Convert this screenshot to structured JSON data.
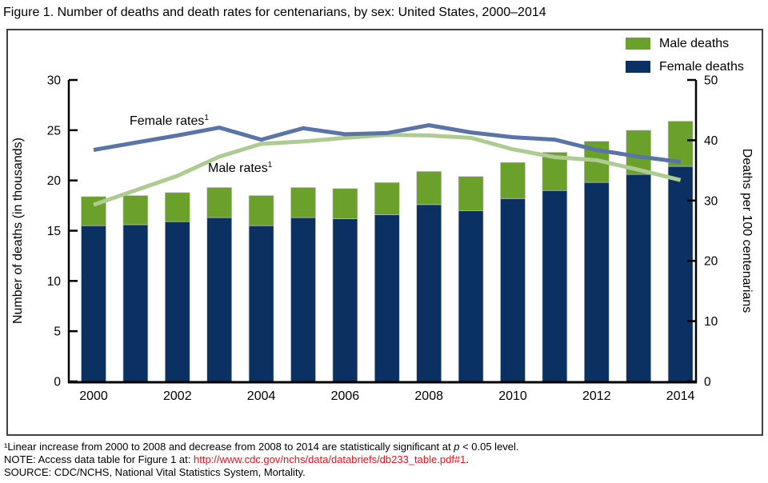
{
  "title": "Figure 1. Number of deaths and death rates for centenarians, by sex: United States, 2000–2014",
  "colors": {
    "female_bar": "#0a3161",
    "male_bar": "#6ba02b",
    "female_line": "#5a74a8",
    "male_line": "#aecb92",
    "axis": "#000000",
    "bar_outline": "#c8c8c8",
    "figure_border": "#404040",
    "link_red": "#e8131a",
    "text": "#000000"
  },
  "legend": [
    {
      "label": "Male deaths",
      "color": "#6ba02b"
    },
    {
      "label": "Female deaths",
      "color": "#0a3161"
    }
  ],
  "chart_data": {
    "type": "combo (stacked bar + line)",
    "categories": [
      "2000",
      "2001",
      "2002",
      "2003",
      "2004",
      "2005",
      "2006",
      "2007",
      "2008",
      "2009",
      "2010",
      "2011",
      "2012",
      "2013",
      "2014"
    ],
    "x_axis_tick_labels": [
      "2000",
      "2002",
      "2004",
      "2006",
      "2008",
      "2010",
      "2012",
      "2014"
    ],
    "left_axis": {
      "label": "Number of deaths (in thousands)",
      "min": 0,
      "max": 30,
      "step": 5
    },
    "right_axis": {
      "label": "Deaths per 100 centenarians",
      "min": 0,
      "max": 50,
      "step": 10
    },
    "bar_series": [
      {
        "name": "Female deaths",
        "axis": "left",
        "color": "#0a3161",
        "values": [
          15.5,
          15.6,
          15.9,
          16.3,
          15.5,
          16.3,
          16.2,
          16.6,
          17.6,
          17.0,
          18.2,
          19.0,
          19.8,
          20.6,
          21.4
        ]
      },
      {
        "name": "Male deaths",
        "axis": "left",
        "color": "#6ba02b",
        "values": [
          2.9,
          2.9,
          2.9,
          3.0,
          3.0,
          3.0,
          3.0,
          3.2,
          3.3,
          3.4,
          3.6,
          3.8,
          4.1,
          4.4,
          4.5
        ]
      }
    ],
    "line_series": [
      {
        "name": "Male rates",
        "axis": "right",
        "color": "#aecb92",
        "values": [
          29.3,
          31.7,
          34.1,
          37.3,
          39.4,
          39.8,
          40.4,
          40.9,
          40.8,
          40.4,
          38.5,
          37.2,
          36.7,
          35.1,
          33.4
        ]
      },
      {
        "name": "Female rates",
        "axis": "right",
        "color": "#5a74a8",
        "values": [
          38.4,
          39.6,
          40.8,
          42.1,
          40.1,
          42.0,
          41.0,
          41.2,
          42.5,
          41.3,
          40.5,
          40.1,
          38.4,
          37.3,
          36.4
        ]
      }
    ],
    "line_labels": [
      {
        "text": "Female rates",
        "sup": "1"
      },
      {
        "text": "Male rates",
        "sup": "1"
      }
    ],
    "grid": "off",
    "legend_position": "top-right inside frame"
  },
  "footnotes": {
    "note1_pre": "¹Linear increase from 2000 to 2008 and decrease from 2008 to 2014 are statistically significant at ",
    "note1_italic": "p",
    "note1_post": " < 0.05 level.",
    "note2_pre": "NOTE: Access data table for Figure 1 at: ",
    "note2_link": "http://www.cdc.gov/nchs/data/databriefs/db233_table.pdf#1",
    "note2_post": ".",
    "source": "SOURCE: CDC/NCHS, National Vital Statistics System, Mortality."
  }
}
